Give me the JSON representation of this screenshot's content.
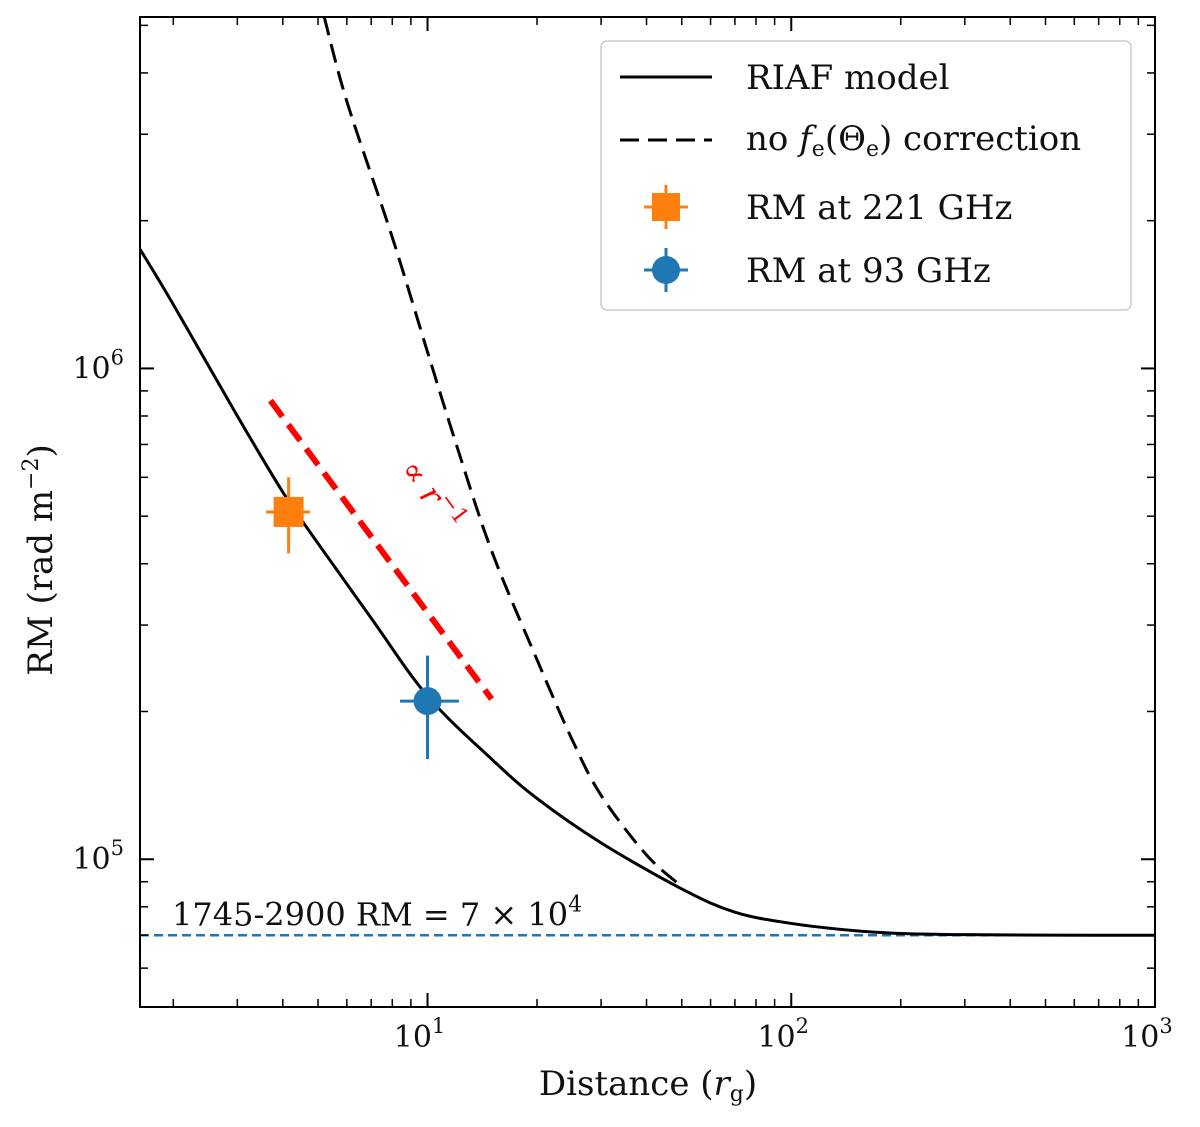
{
  "chart_data": {
    "type": "line",
    "title": "",
    "xlabel": "Distance (r_g)",
    "ylabel": "RM (rad m^-2)",
    "xscale": "log",
    "yscale": "log",
    "xlim": [
      1.62,
      1000
    ],
    "ylim": [
      50000,
      5200000
    ],
    "grid": false,
    "legend_position": "top-right",
    "x_ticks": [
      {
        "base": "10",
        "exp": "1",
        "value": 10
      },
      {
        "base": "10",
        "exp": "2",
        "value": 100
      },
      {
        "base": "10",
        "exp": "3",
        "value": 1000
      }
    ],
    "y_ticks": [
      {
        "base": "10",
        "exp": "5",
        "value": 100000
      },
      {
        "base": "10",
        "exp": "6",
        "value": 1000000
      }
    ],
    "series": [
      {
        "name": "RIAF model",
        "style": "solid",
        "color": "#000000",
        "x": [
          1.62,
          2,
          3,
          4,
          5,
          7,
          10,
          15,
          20,
          30,
          50,
          70,
          100,
          150,
          200,
          300,
          500,
          1000
        ],
        "y": [
          1750000,
          1350000,
          800000,
          560000,
          440000,
          310000,
          215000,
          160000,
          133000,
          108000,
          87000,
          78000,
          74000,
          71500,
          70600,
          70200,
          70050,
          70000
        ]
      },
      {
        "name": "no f_e(Θ_e) correction",
        "style": "dashed",
        "color": "#000000",
        "x": [
          5.2,
          6,
          8,
          10,
          12,
          15,
          20,
          25,
          30,
          40,
          50
        ],
        "y": [
          5200000,
          3500000,
          1850000,
          1080000,
          700000,
          425000,
          255000,
          175000,
          135000,
          102000,
          88000
        ]
      },
      {
        "name": "RM at 221 GHz",
        "type": "errorbar",
        "marker": "square",
        "color": "#ff7f0e",
        "x": 4.15,
        "y": 510000,
        "xerr": [
          0.55,
          0.6
        ],
        "yerr": [
          90000,
          90000
        ]
      },
      {
        "name": "RM at 93 GHz",
        "type": "errorbar",
        "marker": "circle",
        "color": "#1f77b4",
        "x": 10,
        "y": 210000,
        "xerr": [
          1.6,
          2.2
        ],
        "yerr": [
          50000,
          50000
        ]
      }
    ],
    "reference_lines": [
      {
        "label": "1745-2900 RM = 7 × 10^4",
        "label_text": "1745-2900 RM = 7 × 10",
        "label_exp": "4",
        "y": 70000,
        "style": "dashed",
        "color": "#1f77b4"
      },
      {
        "label": "∝ r^-1",
        "label_text": "∝ r",
        "label_exp": "−1",
        "style": "dashed",
        "color": "#ff0000",
        "x": [
          3.7,
          15
        ],
        "y": [
          860000,
          212000
        ]
      }
    ]
  },
  "legend_labels": {
    "riaf": "RIAF model",
    "nofe_prefix": "no ",
    "nofe_f": "f",
    "nofe_fsub": "e",
    "nofe_paren_open": "(",
    "nofe_theta": "Θ",
    "nofe_thetasub": "e",
    "nofe_suffix": ") correction",
    "rm221": "RM at 221 GHz",
    "rm93": "RM at 93 GHz"
  },
  "axis_labels": {
    "x_prefix": "Distance (",
    "x_var": "r",
    "x_sub": "g",
    "x_suffix": ")",
    "y_prefix": "RM (rad m",
    "y_sup": "−2",
    "y_suffix": ")"
  },
  "colors": {
    "orange": "#ff7f0e",
    "blue": "#1f77b4",
    "red": "#ff0000",
    "black": "#000000"
  }
}
